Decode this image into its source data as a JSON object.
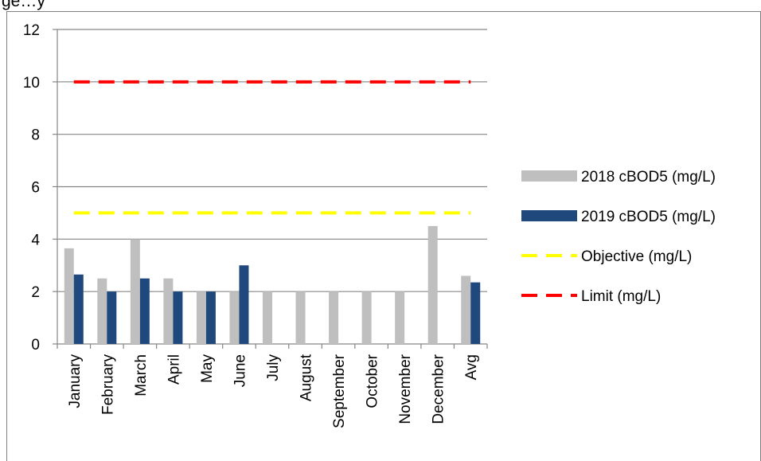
{
  "caption": "ge… (partially cut-off caption above the chart)",
  "chart_data": {
    "type": "bar",
    "categories": [
      "January",
      "February",
      "March",
      "April",
      "May",
      "June",
      "July",
      "August",
      "September",
      "October",
      "November",
      "December",
      "Avg"
    ],
    "ylim": [
      0,
      12
    ],
    "yticks": [
      0,
      2,
      4,
      6,
      8,
      10,
      12
    ],
    "grid": true,
    "legend_position": "right",
    "series": [
      {
        "name": "2018 cBOD5 (mg/L)",
        "kind": "bar",
        "color": "#bfbfbf",
        "values": [
          3.65,
          2.5,
          4.0,
          2.5,
          2.0,
          2.0,
          2.0,
          2.0,
          2.0,
          2.0,
          2.0,
          4.5,
          2.6
        ]
      },
      {
        "name": "2019 cBOD5 (mg/L)",
        "kind": "bar",
        "color": "#1f497d",
        "values": [
          2.65,
          2.0,
          2.5,
          2.0,
          2.0,
          3.0,
          null,
          null,
          null,
          null,
          null,
          null,
          2.35
        ]
      },
      {
        "name": "Objective (mg/L)",
        "kind": "line-dashed",
        "color": "#ffff00",
        "values": [
          5,
          5,
          5,
          5,
          5,
          5,
          5,
          5,
          5,
          5,
          5,
          5,
          5
        ]
      },
      {
        "name": "Limit (mg/L)",
        "kind": "line-dashed",
        "color": "#ff0000",
        "values": [
          10,
          10,
          10,
          10,
          10,
          10,
          10,
          10,
          10,
          10,
          10,
          10,
          10
        ]
      }
    ]
  }
}
